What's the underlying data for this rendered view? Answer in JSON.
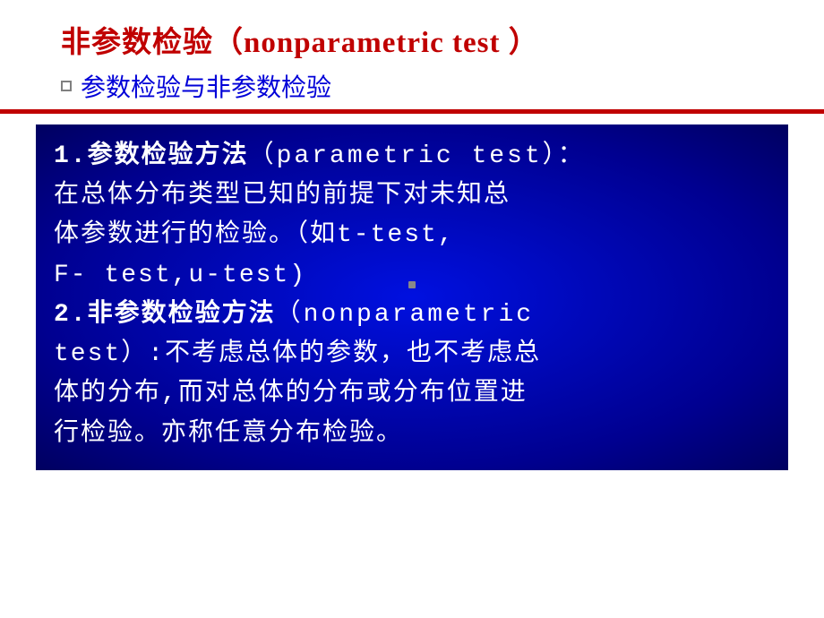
{
  "title": {
    "cn": "非参数检验",
    "en": "（nonparametric test ）"
  },
  "subtitle": "参数检验与非参数检验",
  "content": {
    "item1_num": "1.",
    "item1_bold": "参数检验方法",
    "item1_paren": "（parametric test）：",
    "item1_body1": "在总体分布类型已知的前提下对未知总",
    "item1_body2": "体参数进行的检验。（如t-test,",
    "item1_body3": "F- test,u-test)",
    "item2_num": "2.",
    "item2_bold": "非参数检验方法",
    "item2_paren": "（nonparametric",
    "item2_paren2": "test）:不考虑总体的参数，也不考虑总",
    "item2_body1": "体的分布,而对总体的分布或分布位置进",
    "item2_body2": "行检验。亦称任意分布检验。"
  },
  "colors": {
    "title_color": "#c00000",
    "subtitle_color": "#0000d8",
    "content_bg_start": "#0010e0",
    "content_bg_end": "#000060",
    "content_text": "#ffffff",
    "red_line": "#c00000"
  }
}
